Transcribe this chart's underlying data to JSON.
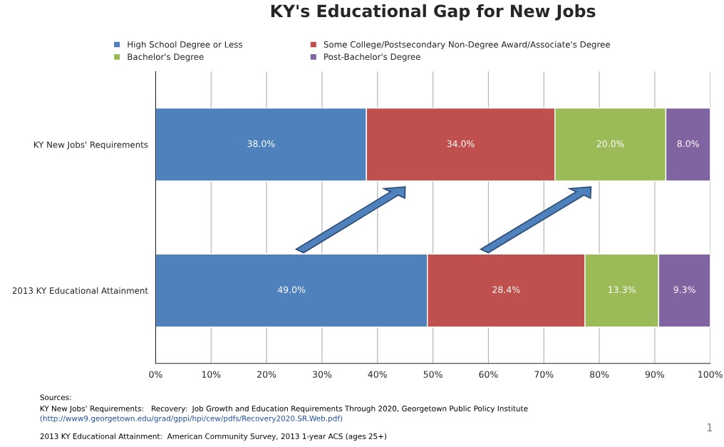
{
  "chart_data": {
    "type": "bar",
    "title": "KY's Educational Gap for New Jobs",
    "orientation": "horizontal",
    "stacked": true,
    "categories": [
      "KY New Jobs' Requirements",
      "2013 KY Educational Attainment"
    ],
    "series": [
      {
        "name": "High School Degree or Less",
        "color": "#4f81bd",
        "values": [
          38.0,
          49.0
        ],
        "value_labels": [
          "38.0%",
          "49.0%"
        ]
      },
      {
        "name": "Some College/Postsecondary Non-Degree Award/Associate's Degree",
        "color": "#c0504d",
        "values": [
          34.0,
          28.4
        ],
        "value_labels": [
          "34.0%",
          "28.4%"
        ]
      },
      {
        "name": "Bachelor's Degree",
        "color": "#9bbb59",
        "values": [
          20.0,
          13.3
        ],
        "value_labels": [
          "20.0%",
          "13.3%"
        ]
      },
      {
        "name": "Post-Bachelor's Degree",
        "color": "#8064a2",
        "values": [
          8.0,
          9.3
        ],
        "value_labels": [
          "8.0%",
          "9.3%"
        ]
      }
    ],
    "xlim": [
      0,
      100
    ],
    "xticks": [
      {
        "value": 0,
        "label": "0%"
      },
      {
        "value": 10,
        "label": "10%"
      },
      {
        "value": 20,
        "label": "20%"
      },
      {
        "value": 30,
        "label": "30%"
      },
      {
        "value": 40,
        "label": "40%"
      },
      {
        "value": 50,
        "label": "50%"
      },
      {
        "value": 60,
        "label": "60%"
      },
      {
        "value": 70,
        "label": "70%"
      },
      {
        "value": 80,
        "label": "80%"
      },
      {
        "value": 90,
        "label": "90%"
      },
      {
        "value": 100,
        "label": "100%"
      }
    ],
    "grid": "x",
    "legend": "top",
    "annotations": [
      "Sources:",
      "KY New Jobs’ Requirements:   Recovery:  Job Growth and Education Requirements Through 2020, Georgetown Public Policy Institute",
      "(http://www9.georgetown.edu/grad/gppi/hpi/cew/pdfs/Recovery2020.SR.Web.pdf)",
      "2013 KY Educational Attainment:  American Community Survey, 2013 1-year ACS (ages 25+)",
      "1"
    ]
  }
}
